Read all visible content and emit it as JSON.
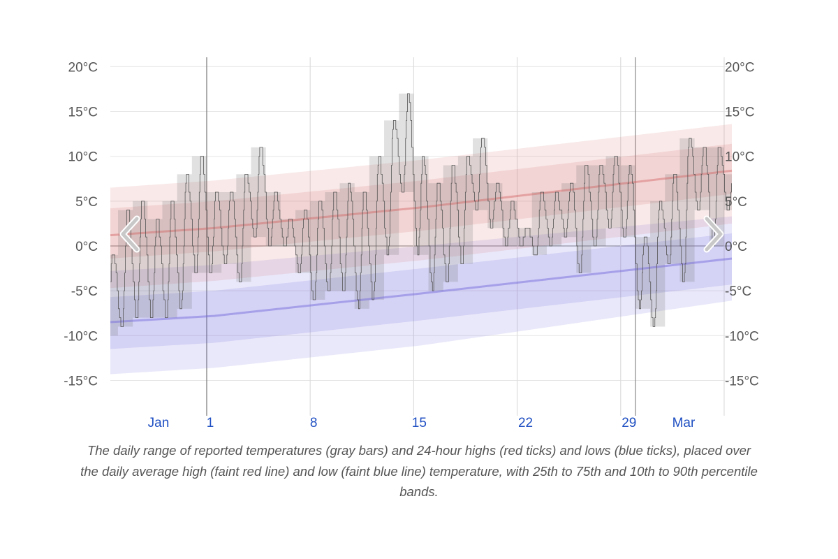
{
  "caption": "The daily range of reported temperatures (gray bars) and 24-hour highs (red ticks) and lows (blue ticks), placed over the daily average high (faint red line) and low (faint blue line) temperature, with 25th to 75th and 10th to 90th percentile bands.",
  "navigation": {
    "prev_icon": "chevron-left-icon",
    "next_icon": "chevron-right-icon"
  },
  "colors": {
    "high": "#d26464",
    "low": "#6e64dc",
    "range": "#808080",
    "x_labels": "#1f4fc2"
  },
  "chart_data": {
    "type": "area",
    "ylim": [
      -18,
      22
    ],
    "yticks": [
      "20°C",
      "15°C",
      "10°C",
      "5°C",
      "0°C",
      "-5°C",
      "-10°C",
      "-15°C"
    ],
    "ytick_values": [
      20,
      15,
      10,
      5,
      0,
      -5,
      -10,
      -15
    ],
    "xticks": [
      {
        "label": "Jan",
        "kind": "month"
      },
      {
        "label": "1",
        "kind": "day"
      },
      {
        "label": "8",
        "kind": "day"
      },
      {
        "label": "15",
        "kind": "day"
      },
      {
        "label": "22",
        "kind": "day"
      },
      {
        "label": "29",
        "kind": "day"
      },
      {
        "label": "Mar",
        "kind": "month"
      }
    ],
    "grid": true,
    "daily_range": [
      {
        "date": "Jan 25",
        "low": -10,
        "high": -1
      },
      {
        "date": "Jan 26",
        "low": -9,
        "high": 4
      },
      {
        "date": "Jan 27",
        "low": -8,
        "high": 5
      },
      {
        "date": "Jan 28",
        "low": -8,
        "high": 3
      },
      {
        "date": "Jan 29",
        "low": -8,
        "high": 5
      },
      {
        "date": "Jan 30",
        "low": -7,
        "high": 8
      },
      {
        "date": "Jan 31",
        "low": -3,
        "high": 10
      },
      {
        "date": "Feb 1",
        "low": -3,
        "high": 6
      },
      {
        "date": "Feb 2",
        "low": -2,
        "high": 6
      },
      {
        "date": "Feb 3",
        "low": -4,
        "high": 8
      },
      {
        "date": "Feb 4",
        "low": 1,
        "high": 11
      },
      {
        "date": "Feb 5",
        "low": 0,
        "high": 6
      },
      {
        "date": "Feb 6",
        "low": 0,
        "high": 3
      },
      {
        "date": "Feb 7",
        "low": -3,
        "high": 4
      },
      {
        "date": "Feb 8",
        "low": -6,
        "high": 5
      },
      {
        "date": "Feb 9",
        "low": -5,
        "high": 6
      },
      {
        "date": "Feb 10",
        "low": -5,
        "high": 7
      },
      {
        "date": "Feb 11",
        "low": -7,
        "high": 6
      },
      {
        "date": "Feb 12",
        "low": -6,
        "high": 10
      },
      {
        "date": "Feb 13",
        "low": -1,
        "high": 14
      },
      {
        "date": "Feb 14",
        "low": 6,
        "high": 17
      },
      {
        "date": "Feb 15",
        "low": -1,
        "high": 10
      },
      {
        "date": "Feb 16",
        "low": -5,
        "high": 7
      },
      {
        "date": "Feb 17",
        "low": -4,
        "high": 9
      },
      {
        "date": "Feb 18",
        "low": -2,
        "high": 10
      },
      {
        "date": "Feb 19",
        "low": 4,
        "high": 12
      },
      {
        "date": "Feb 20",
        "low": 2,
        "high": 7
      },
      {
        "date": "Feb 21",
        "low": 0,
        "high": 5
      },
      {
        "date": "Feb 22",
        "low": 0,
        "high": 2
      },
      {
        "date": "Feb 23",
        "low": -1,
        "high": 6
      },
      {
        "date": "Feb 24",
        "low": 0,
        "high": 6
      },
      {
        "date": "Feb 25",
        "low": 1,
        "high": 7
      },
      {
        "date": "Feb 26",
        "low": -3,
        "high": 9
      },
      {
        "date": "Feb 27",
        "low": 0,
        "high": 9
      },
      {
        "date": "Feb 28",
        "low": 2,
        "high": 10
      },
      {
        "date": "Feb 29",
        "low": 1,
        "high": 9
      },
      {
        "date": "Mar 1",
        "low": -7,
        "high": 1
      },
      {
        "date": "Mar 2",
        "low": -9,
        "high": 5
      },
      {
        "date": "Mar 3",
        "low": -2,
        "high": 8
      },
      {
        "date": "Mar 4",
        "low": -4,
        "high": 12
      },
      {
        "date": "Mar 5",
        "low": 4,
        "high": 11
      },
      {
        "date": "Mar 6",
        "low": 0,
        "high": 11
      },
      {
        "date": "Mar 7",
        "low": 4,
        "high": 8
      }
    ],
    "average_high": [
      {
        "date": "Jan 25",
        "p10": -4.7,
        "p25": -1.4,
        "avg": 1.2,
        "p75": 4.2,
        "p90": 6.5
      },
      {
        "date": "Feb 1",
        "p10": -3.9,
        "p25": -0.6,
        "avg": 2.0,
        "p75": 5.0,
        "p90": 7.3
      },
      {
        "date": "Feb 15",
        "p10": -1.6,
        "p25": 1.7,
        "avg": 4.3,
        "p75": 7.3,
        "p90": 9.6
      },
      {
        "date": "Mar 7",
        "p10": 2.5,
        "p25": 5.8,
        "avg": 8.4,
        "p75": 11.4,
        "p90": 13.6
      }
    ],
    "average_low": [
      {
        "date": "Jan 25",
        "p10": -14.3,
        "p25": -11.5,
        "avg": -8.5,
        "p75": -5.7,
        "p90": -2.8
      },
      {
        "date": "Feb 1",
        "p10": -13.6,
        "p25": -10.8,
        "avg": -7.8,
        "p75": -5.0,
        "p90": -2.1
      },
      {
        "date": "Feb 15",
        "p10": -11.1,
        "p25": -8.3,
        "avg": -5.3,
        "p75": -2.5,
        "p90": 0.0
      },
      {
        "date": "Mar 7",
        "p10": -6.1,
        "p25": -4.3,
        "avg": -1.4,
        "p75": 1.4,
        "p90": 3.3
      }
    ]
  }
}
